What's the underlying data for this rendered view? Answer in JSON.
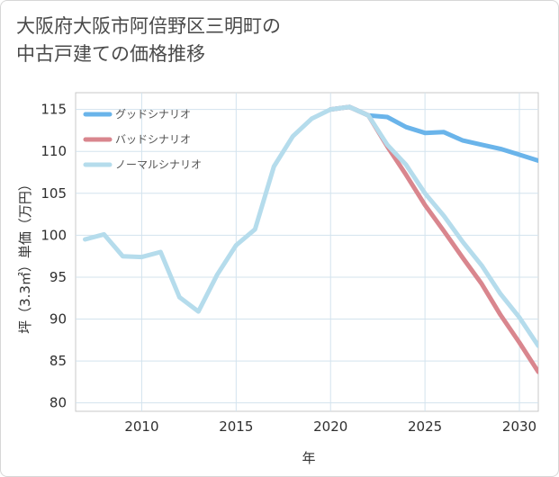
{
  "chart_data": {
    "type": "line",
    "title": "大阪府大阪市阿倍野区三明町の\n中古戸建ての価格推移",
    "xlabel": "年",
    "ylabel": "坪（3.3㎡）単価（万円）",
    "xlim": [
      2006.5,
      2031
    ],
    "ylim": [
      79,
      117
    ],
    "x_ticks": [
      2010,
      2015,
      2020,
      2025,
      2030
    ],
    "y_ticks": [
      80,
      85,
      90,
      95,
      100,
      105,
      110,
      115
    ],
    "grid": true,
    "legend_position": "top-left",
    "series": [
      {
        "name": "グッドシナリオ",
        "color": "#6ab4ea",
        "x": [
          2020,
          2021,
          2022,
          2023,
          2024,
          2025,
          2026,
          2027,
          2028,
          2029,
          2030,
          2031
        ],
        "y": [
          115.0,
          115.3,
          114.3,
          114.1,
          112.9,
          112.2,
          112.3,
          111.3,
          110.8,
          110.3,
          109.6,
          108.9
        ]
      },
      {
        "name": "バッドシナリオ",
        "color": "#d9868e",
        "x": [
          2020,
          2021,
          2022,
          2023,
          2024,
          2025,
          2026,
          2027,
          2028,
          2029,
          2030,
          2031
        ],
        "y": [
          115.0,
          115.3,
          114.3,
          110.6,
          107.2,
          103.6,
          100.5,
          97.3,
          94.2,
          90.5,
          87.2,
          83.7
        ]
      },
      {
        "name": "ノーマルシナリオ",
        "color": "#b5dcec",
        "x": [
          2007,
          2008,
          2009,
          2010,
          2011,
          2012,
          2013,
          2014,
          2015,
          2016,
          2017,
          2018,
          2019,
          2020,
          2021,
          2022,
          2023,
          2024,
          2025,
          2026,
          2027,
          2028,
          2029,
          2030,
          2031
        ],
        "y": [
          99.5,
          100.1,
          97.5,
          97.4,
          98.0,
          92.6,
          90.9,
          95.3,
          98.8,
          100.7,
          108.2,
          111.8,
          113.9,
          115.0,
          115.3,
          114.3,
          110.8,
          108.4,
          105.0,
          102.3,
          99.2,
          96.4,
          93.0,
          90.2,
          86.8
        ]
      }
    ]
  }
}
